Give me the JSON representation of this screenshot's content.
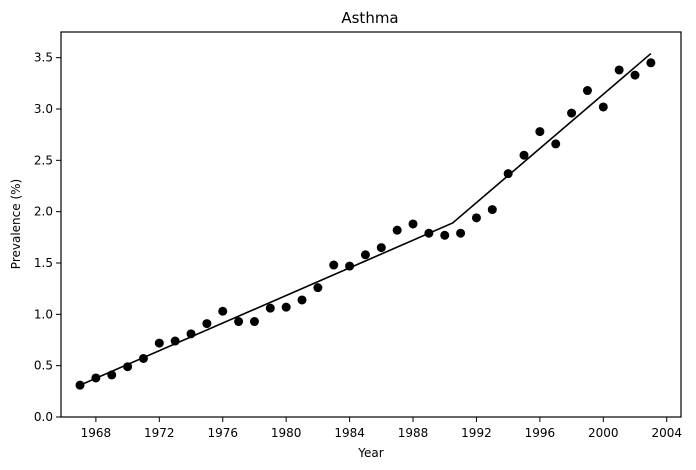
{
  "chart_data": {
    "type": "scatter",
    "title": "Asthma",
    "xlabel": "Year",
    "ylabel": "Prevalence (%)",
    "xlim": [
      1965.8,
      2004.9
    ],
    "ylim": [
      0.0,
      3.75
    ],
    "x_ticks": [
      1968,
      1972,
      1976,
      1980,
      1984,
      1988,
      1992,
      1996,
      2000,
      2004
    ],
    "y_ticks": [
      0.0,
      0.5,
      1.0,
      1.5,
      2.0,
      2.5,
      3.0,
      3.5
    ],
    "x_tick_labels": [
      "1968",
      "1972",
      "1976",
      "1980",
      "1984",
      "1988",
      "1992",
      "1996",
      "2000",
      "2004"
    ],
    "y_tick_labels": [
      "0.0",
      "0.5",
      "1.0",
      "1.5",
      "2.0",
      "2.5",
      "3.0",
      "3.5"
    ],
    "grid": false,
    "legend": false,
    "series": [
      {
        "type": "scatter",
        "color": "#000000",
        "x": [
          1967,
          1968,
          1969,
          1970,
          1971,
          1972,
          1973,
          1974,
          1975,
          1976,
          1977,
          1978,
          1979,
          1980,
          1981,
          1982,
          1983,
          1984,
          1985,
          1986,
          1987,
          1988,
          1989,
          1990,
          1991,
          1992,
          1993,
          1994,
          1995,
          1996,
          1997,
          1998,
          1999,
          2000,
          2001,
          2002,
          2003
        ],
        "y": [
          0.31,
          0.38,
          0.41,
          0.49,
          0.57,
          0.72,
          0.74,
          0.81,
          0.91,
          1.03,
          0.93,
          0.93,
          1.06,
          1.07,
          1.14,
          1.26,
          1.48,
          1.47,
          1.58,
          1.65,
          1.82,
          1.88,
          1.79,
          1.77,
          1.79,
          1.94,
          2.02,
          2.37,
          2.55,
          2.78,
          2.66,
          2.96,
          3.18,
          3.02,
          3.38,
          3.33,
          3.45
        ]
      },
      {
        "type": "line",
        "color": "#000000",
        "x": [
          1967,
          1990.5,
          2003
        ],
        "y": [
          0.31,
          1.89,
          3.54
        ]
      }
    ]
  }
}
